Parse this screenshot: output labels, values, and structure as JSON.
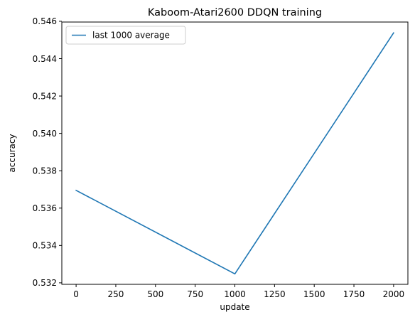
{
  "chart_data": {
    "type": "line",
    "title": "Kaboom-Atari2600 DDQN training",
    "xlabel": "update",
    "ylabel": "accuracy",
    "xlim": [
      -90,
      2090
    ],
    "ylim": [
      0.53192,
      0.54596
    ],
    "xticks": [
      0,
      250,
      500,
      750,
      1000,
      1250,
      1500,
      1750,
      2000
    ],
    "xtick_labels": [
      "0",
      "250",
      "500",
      "750",
      "1000",
      "1250",
      "1500",
      "1750",
      "2000"
    ],
    "yticks": [
      0.532,
      0.534,
      0.536,
      0.538,
      0.54,
      0.542,
      0.544,
      0.546
    ],
    "ytick_labels": [
      "0.532",
      "0.534",
      "0.536",
      "0.538",
      "0.540",
      "0.542",
      "0.544",
      "0.546"
    ],
    "grid": false,
    "legend_position": "top-left",
    "series": [
      {
        "name": "last 1000 average",
        "color": "#1f77b4",
        "x": [
          0,
          1000,
          2000
        ],
        "y": [
          0.53695,
          0.53248,
          0.54538
        ]
      }
    ]
  }
}
